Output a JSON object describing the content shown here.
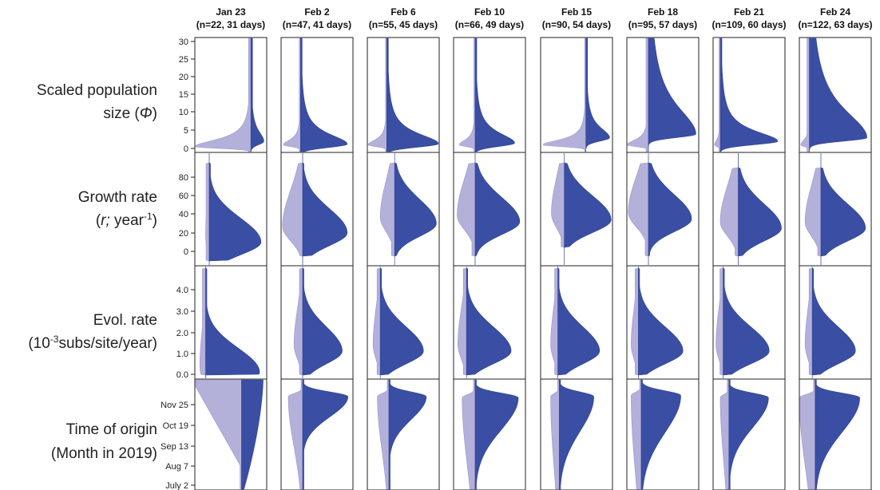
{
  "chart_data": {
    "type": "split-violin-grid",
    "columns": [
      {
        "date": "Jan 23",
        "subtitle": "(n=22, 31 days)"
      },
      {
        "date": "Feb 2",
        "subtitle": "(n=47, 41 days)"
      },
      {
        "date": "Feb 6",
        "subtitle": "(n=55, 45 days)"
      },
      {
        "date": "Feb 10",
        "subtitle": "(n=66, 49 days)"
      },
      {
        "date": "Feb 15",
        "subtitle": "(n=90, 54 days)"
      },
      {
        "date": "Feb 18",
        "subtitle": "(n=95, 57 days)"
      },
      {
        "date": "Feb 21",
        "subtitle": "(n=109, 60 days)"
      },
      {
        "date": "Feb 24",
        "subtitle": "(n=122, 63 days)"
      }
    ],
    "rows": [
      {
        "label_line1": "Scaled population",
        "label_line2a": "size (",
        "label_symbol": "Φ",
        "label_line2b": ")",
        "ticks": [
          "0",
          "5",
          "10",
          "15",
          "20",
          "25",
          "30"
        ],
        "ylim": [
          0,
          30
        ]
      },
      {
        "label_line1": "Growth rate",
        "label_line2a": "(",
        "label_symbol": "r;",
        "label_line2b": " year",
        "label_sup": "-1",
        "label_line2c": ")",
        "ticks": [
          "0",
          "20",
          "40",
          "60",
          "80"
        ],
        "ylim": [
          -10,
          95
        ]
      },
      {
        "label_line1": "Evol. rate",
        "label_line2a": "(10",
        "label_sup": "-3",
        "label_line2b": "subs/site/year)",
        "ticks": [
          "0.0",
          "1.0",
          "2.0",
          "3.0",
          "4.0"
        ],
        "ylim": [
          0,
          5
        ]
      },
      {
        "label_line1": "Time of origin",
        "label_line2a": "(Month in 2019)",
        "ticks": [
          "July 2",
          "Aug 7",
          "Sep 13",
          "Oct 19",
          "Nov 25"
        ]
      }
    ],
    "colors": {
      "prior_half": "#b3b0da",
      "posterior_half": "#3a4ea3",
      "frame": "#222222"
    }
  }
}
